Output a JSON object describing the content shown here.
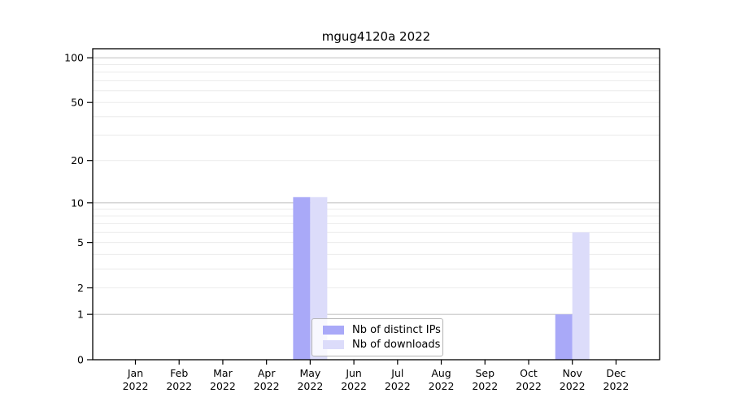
{
  "chart_data": {
    "type": "bar",
    "title": "mgug4120a 2022",
    "xlabel": "",
    "ylabel": "",
    "year_label": "2022",
    "categories": [
      "Jan",
      "Feb",
      "Mar",
      "Apr",
      "May",
      "Jun",
      "Jul",
      "Aug",
      "Sep",
      "Oct",
      "Nov",
      "Dec"
    ],
    "series": [
      {
        "name": "Nb of distinct IPs",
        "color": "#a9a9f8",
        "values": [
          0,
          0,
          0,
          0,
          11,
          0,
          0,
          0,
          0,
          0,
          1,
          0
        ]
      },
      {
        "name": "Nb of downloads",
        "color": "#dcdcfa",
        "values": [
          0,
          0,
          0,
          0,
          11,
          0,
          0,
          0,
          0,
          0,
          6,
          0
        ]
      }
    ],
    "yscale": "log1p",
    "yticks": [
      0,
      1,
      2,
      5,
      10,
      20,
      50,
      100
    ],
    "ylim": [
      0,
      115
    ],
    "grid": {
      "major_values": [
        1,
        10,
        100
      ],
      "major_color": "#c6c6c6",
      "minor_color": "#ececec"
    },
    "axis_color": "#000000",
    "text_color": "#000000",
    "legend": {
      "position": "lower center"
    }
  }
}
